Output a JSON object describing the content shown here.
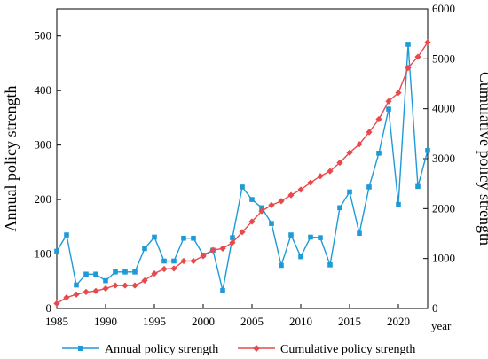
{
  "chart_data": {
    "type": "line",
    "title": "",
    "xlabel": "year",
    "ylabel_left": "Annual policy strength",
    "ylabel_right": "Cumulative policy strength",
    "xlim": [
      1985,
      2023
    ],
    "ylim_left": [
      0,
      550
    ],
    "ylim_right": [
      0,
      6000
    ],
    "x_ticks": [
      1985,
      1990,
      1995,
      2000,
      2005,
      2010,
      2015,
      2020
    ],
    "y_ticks_left": [
      0,
      100,
      200,
      300,
      400,
      500
    ],
    "y_ticks_right": [
      0,
      1000,
      2000,
      3000,
      4000,
      5000,
      6000
    ],
    "grid": false,
    "legend_position": "bottom",
    "x": [
      1985,
      1986,
      1987,
      1988,
      1989,
      1990,
      1991,
      1992,
      1993,
      1994,
      1995,
      1996,
      1997,
      1998,
      1999,
      2000,
      2001,
      2002,
      2003,
      2004,
      2005,
      2006,
      2007,
      2008,
      2009,
      2010,
      2011,
      2012,
      2013,
      2014,
      2015,
      2016,
      2017,
      2018,
      2019,
      2020,
      2021,
      2022,
      2023
    ],
    "series": [
      {
        "name": "Annual policy strength",
        "axis": "left",
        "color": "#1E9BD7",
        "marker": "square",
        "values": [
          105,
          135,
          43,
          63,
          63,
          51,
          67,
          67,
          67,
          110,
          131,
          87,
          87,
          129,
          129,
          98,
          107,
          33,
          130,
          223,
          200,
          185,
          156,
          79,
          135,
          95,
          131,
          130,
          80,
          185,
          214,
          138,
          223,
          285,
          366,
          191,
          485,
          224,
          290
        ]
      },
      {
        "name": "Cumulative policy strength",
        "axis": "right",
        "color": "#E8494D",
        "marker": "diamond",
        "values": [
          100,
          220,
          280,
          330,
          350,
          400,
          460,
          460,
          460,
          560,
          700,
          790,
          800,
          950,
          950,
          1050,
          1170,
          1200,
          1320,
          1530,
          1740,
          1950,
          2070,
          2150,
          2270,
          2380,
          2520,
          2650,
          2750,
          2920,
          3120,
          3290,
          3530,
          3790,
          4150,
          4320,
          4820,
          5040,
          5330
        ]
      }
    ]
  }
}
